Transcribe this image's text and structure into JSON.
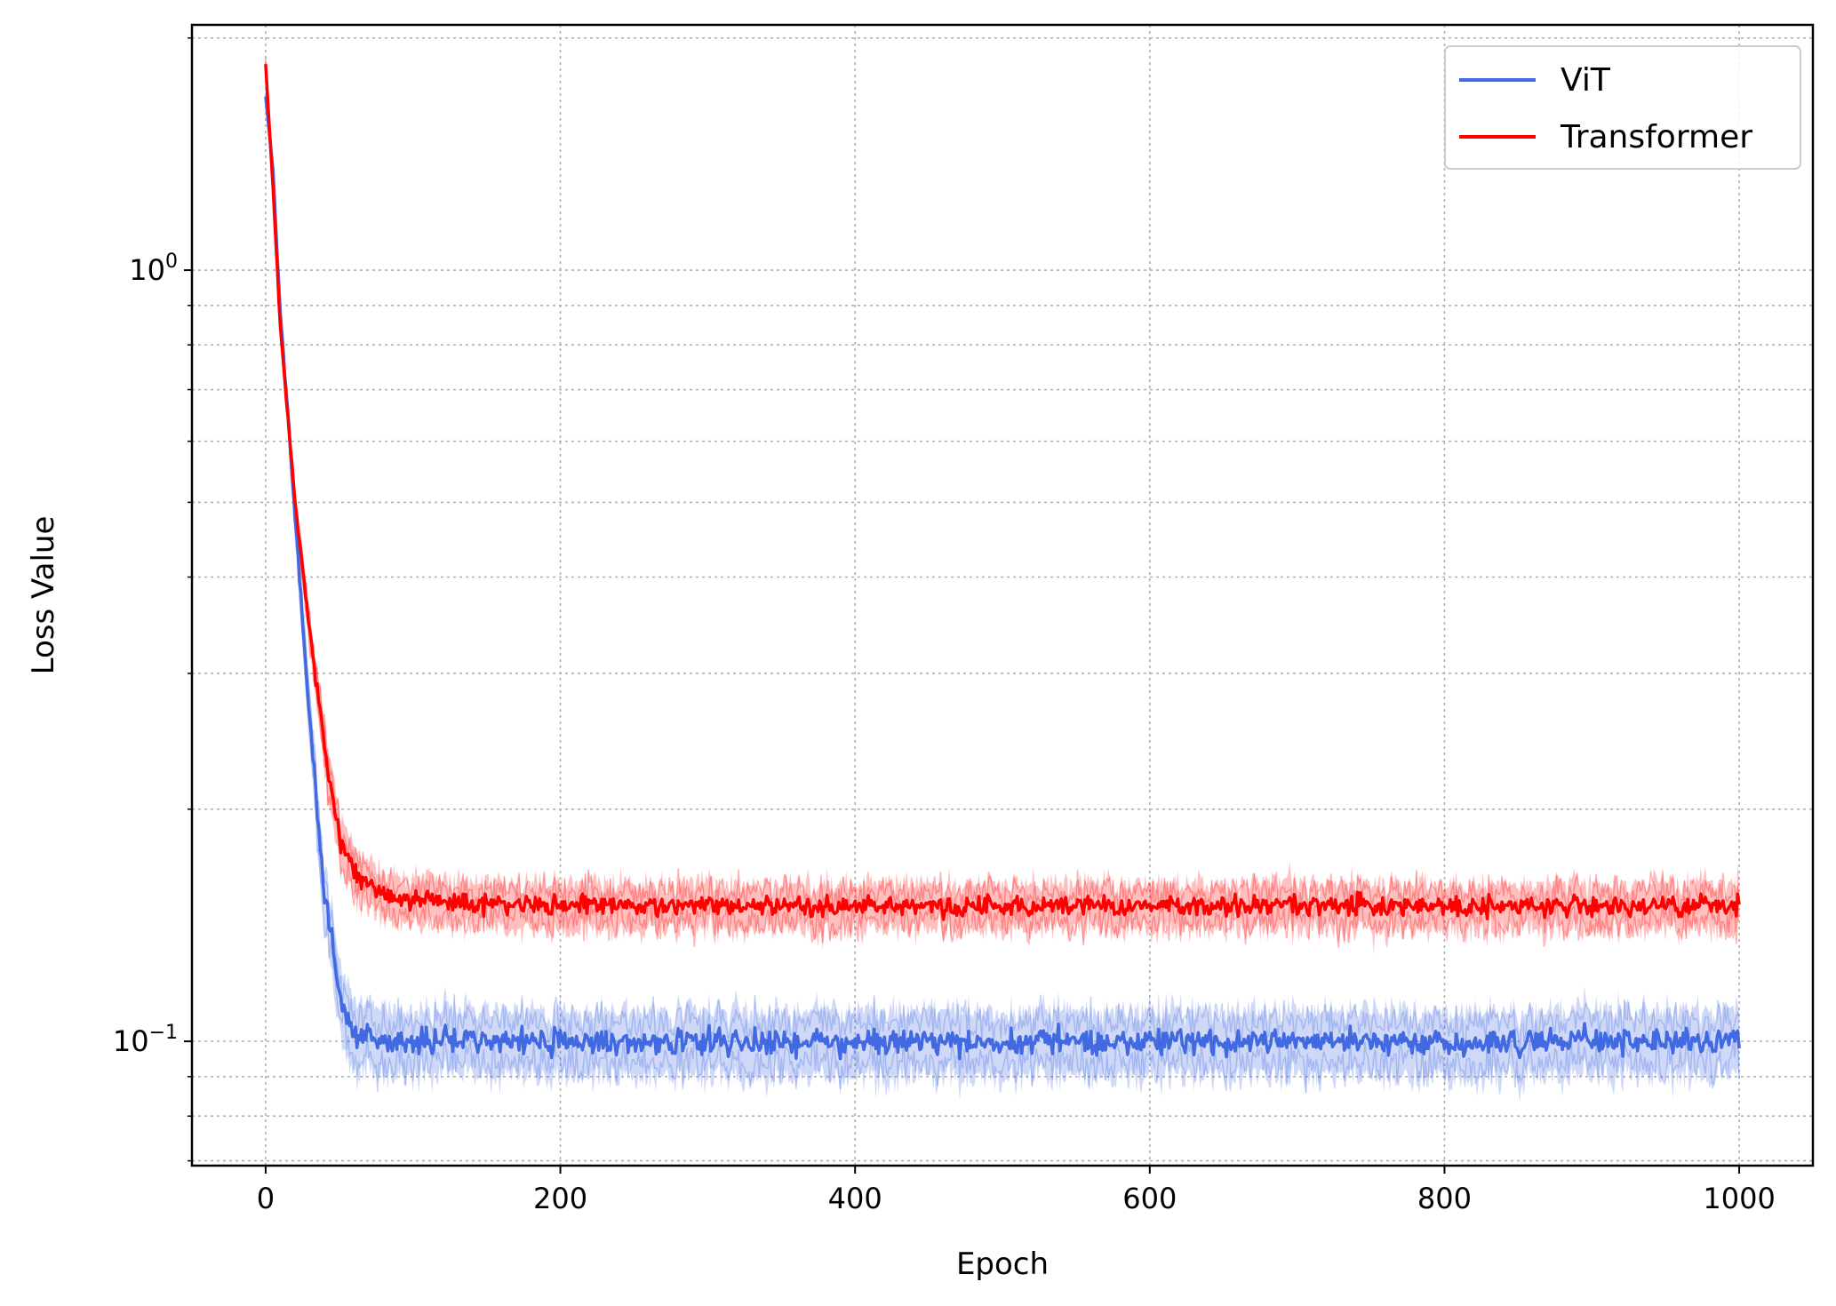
{
  "chart_data": {
    "type": "line",
    "xlabel": "Epoch",
    "ylabel": "Loss Value",
    "xlim": [
      -50,
      1050
    ],
    "ylim": [
      0.069,
      2.08
    ],
    "yscale": "log",
    "grid": true,
    "legend_position": "top-right",
    "x_ticks": [
      0,
      200,
      400,
      600,
      800,
      1000
    ],
    "x_tick_labels": [
      "0",
      "200",
      "400",
      "600",
      "800",
      "1000"
    ],
    "y_ticks": [
      0.1,
      1.0
    ],
    "y_tick_base": "10",
    "y_tick_exponents": [
      "−1",
      "0"
    ],
    "series": [
      {
        "name": "ViT",
        "color": "#4169e1",
        "band_opacity": 0.25,
        "x": [
          0,
          5,
          10,
          20,
          30,
          40,
          50,
          60,
          80,
          100,
          150,
          200,
          300,
          400,
          500,
          600,
          700,
          800,
          900,
          1000
        ],
        "y": [
          1.68,
          1.35,
          0.88,
          0.48,
          0.26,
          0.155,
          0.115,
          0.102,
          0.1,
          0.1,
          0.1,
          0.1,
          0.1,
          0.1,
          0.1,
          0.1,
          0.1,
          0.1,
          0.1,
          0.1
        ],
        "noise_frac": 0.04,
        "band_frac": 0.1
      },
      {
        "name": "Transformer",
        "color": "#ff0000",
        "band_opacity": 0.25,
        "x": [
          0,
          5,
          10,
          20,
          30,
          40,
          50,
          60,
          80,
          100,
          150,
          200,
          300,
          400,
          500,
          600,
          700,
          800,
          900,
          1000
        ],
        "y": [
          1.85,
          1.28,
          0.84,
          0.5,
          0.34,
          0.24,
          0.185,
          0.165,
          0.155,
          0.152,
          0.15,
          0.15,
          0.15,
          0.15,
          0.15,
          0.15,
          0.15,
          0.15,
          0.15,
          0.15
        ],
        "noise_frac": 0.03,
        "band_frac": 0.07
      }
    ]
  }
}
